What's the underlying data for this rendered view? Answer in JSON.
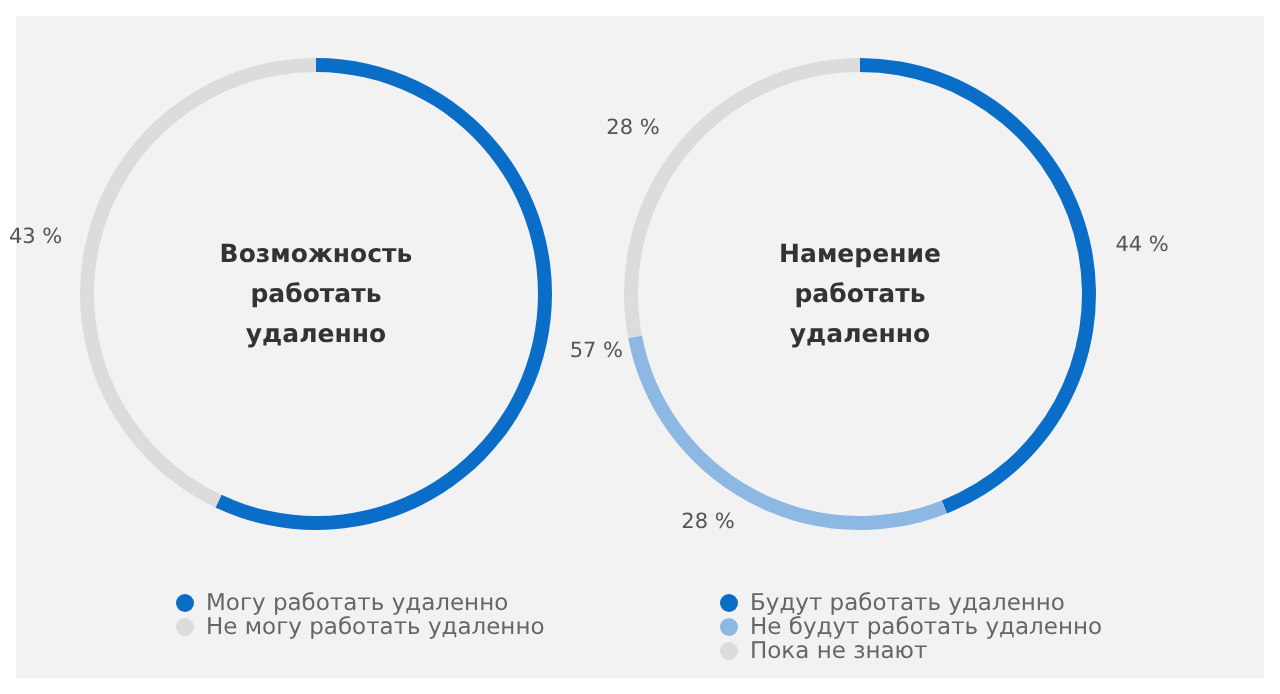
{
  "chart_data": [
    {
      "type": "donut",
      "title": "Возможность работать удаленно",
      "categories": [
        "Могу работать удаленно",
        "Не могу работать удаленно"
      ],
      "values": [
        57,
        43
      ],
      "colors": [
        "#0a6ec8",
        "#dcdcdc"
      ],
      "value_labels": [
        "57 %",
        "43 %"
      ],
      "legend": "bottom"
    },
    {
      "type": "donut",
      "title": "Намерение работать удаленно",
      "categories": [
        "Будут работать удаленно",
        "Не будут работать удаленно",
        "Пока не знают"
      ],
      "values": [
        44,
        28,
        28
      ],
      "colors": [
        "#0a6ec8",
        "#8db8e4",
        "#dcdcdc"
      ],
      "value_labels": [
        "44 %",
        "28 %",
        "28 %"
      ],
      "legend": "bottom"
    }
  ]
}
